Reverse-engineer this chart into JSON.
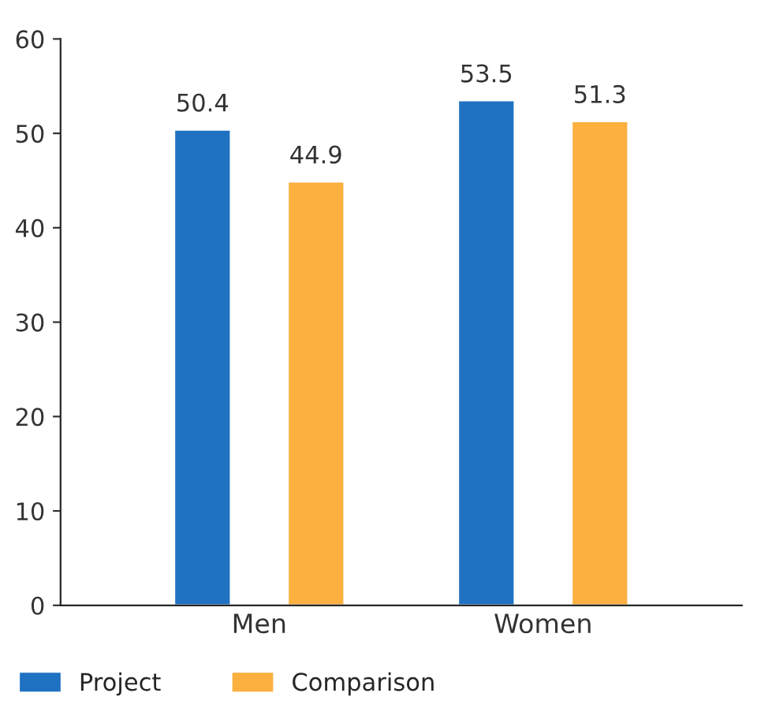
{
  "chart_data": {
    "type": "bar",
    "categories": [
      "Men",
      "Women"
    ],
    "series": [
      {
        "name": "Project",
        "color": "#1f72c1",
        "values": [
          50.4,
          53.5
        ]
      },
      {
        "name": "Comparison",
        "color": "#fbb040",
        "values": [
          44.9,
          51.3
        ]
      }
    ],
    "ylim": [
      0,
      60
    ],
    "yticks": [
      0,
      10,
      20,
      30,
      40,
      50,
      60
    ],
    "data_labels": true,
    "grid": false,
    "legend": "bottom"
  }
}
